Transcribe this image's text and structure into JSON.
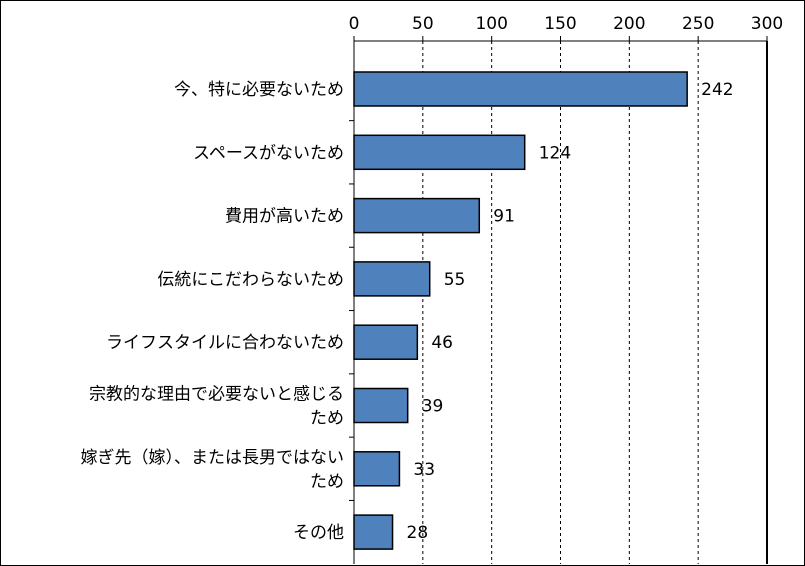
{
  "chart_data": {
    "type": "bar",
    "orientation": "horizontal",
    "categories": [
      "今、特に必要ないため",
      "スペースがないため",
      "費用が高いため",
      "伝統にこだわらないため",
      "ライフスタイルに合わないため",
      "宗教的な理由で必要ないと感じるため",
      "嫁ぎ先（嫁）、または長男ではないため",
      "その他"
    ],
    "category_lines": [
      [
        "今、特に必要ないため"
      ],
      [
        "スペースがないため"
      ],
      [
        "費用が高いため"
      ],
      [
        "伝統にこだわらないため"
      ],
      [
        "ライフスタイルに合わないため"
      ],
      [
        "宗教的な理由で必要ないと感じる",
        "ため"
      ],
      [
        "嫁ぎ先（嫁）、または長男ではない",
        "ため"
      ],
      [
        "その他"
      ]
    ],
    "values": [
      242,
      124,
      91,
      55,
      46,
      39,
      33,
      28
    ],
    "data_labels": [
      "242",
      "124",
      "91",
      "55",
      "46",
      "39",
      "33",
      "28"
    ],
    "xlim": [
      0,
      300
    ],
    "xticks": [
      0,
      50,
      100,
      150,
      200,
      250,
      300
    ],
    "xtick_labels": [
      "0",
      "50",
      "100",
      "150",
      "200",
      "250",
      "300"
    ],
    "axis_position": "top",
    "grid": "vertical dashed",
    "bar_color": "#4F81BD",
    "bar_edge_color": "#000000"
  }
}
